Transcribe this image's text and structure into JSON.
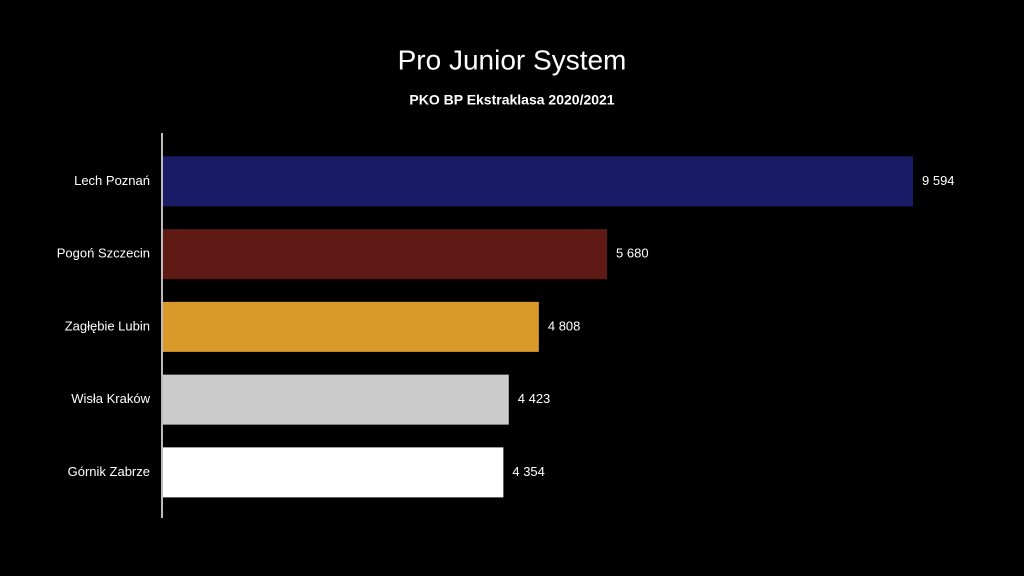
{
  "chart_data": {
    "type": "bar",
    "title": "Pro Junior System",
    "subtitle": "PKO BP Ekstraklasa 2020/2021",
    "categories": [
      "Lech Poznań",
      "Pogoń Szczecin",
      "Zagłębie Lubin",
      "Wisła Kraków",
      "Górnik Zabrze"
    ],
    "values": [
      9594,
      5680,
      4808,
      4423,
      4354
    ],
    "value_labels": [
      "9 594",
      "5 680",
      "4 808",
      "4 423",
      "4 354"
    ],
    "colors": [
      "#1a1c68",
      "#5e1915",
      "#d99a29",
      "#cccccc",
      "#ffffff"
    ]
  }
}
